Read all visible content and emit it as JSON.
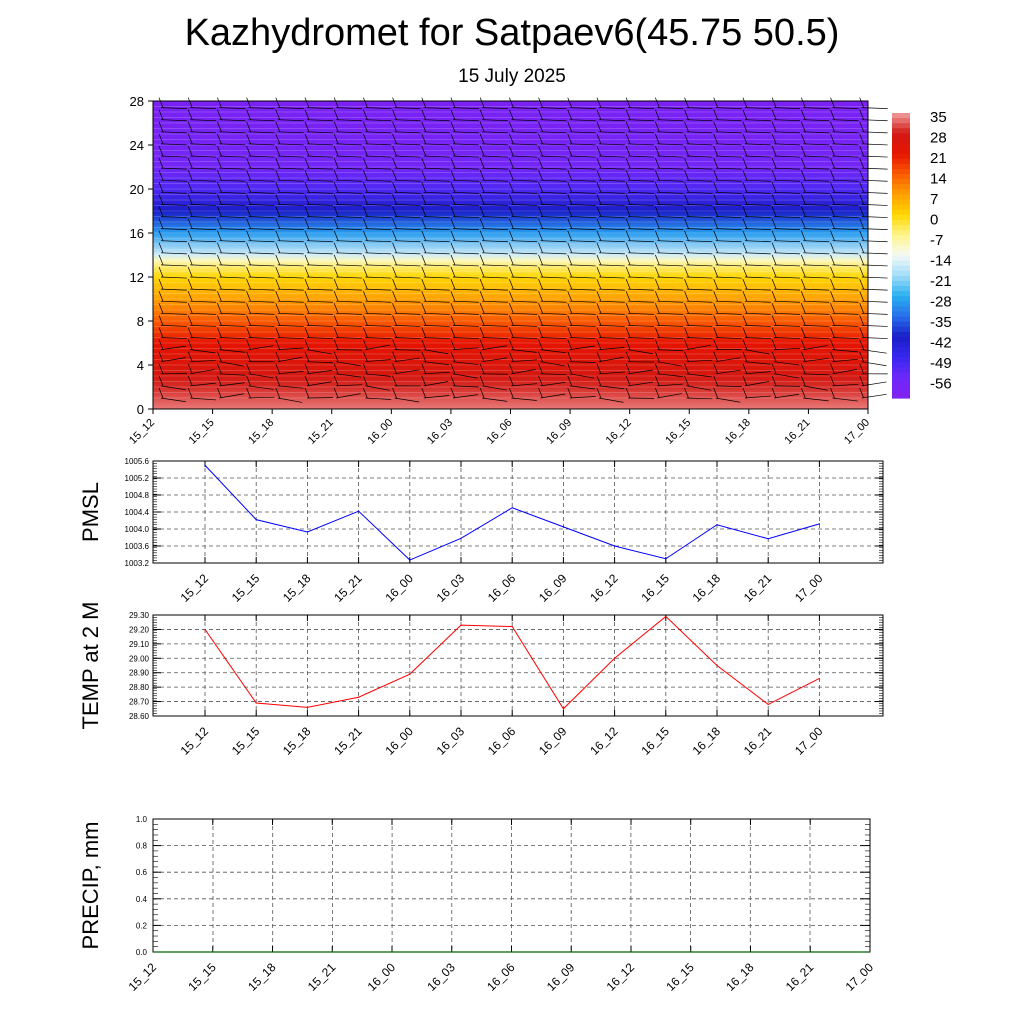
{
  "header": {
    "title": "Kazhydromet for Satpaev6(45.75 50.5)",
    "subtitle": "15 July 2025"
  },
  "chart_data": [
    {
      "id": "temperature_profile",
      "type": "heatmap",
      "description_type": "filled contour with wind barbs",
      "x_ticks": [
        "15_12",
        "15_15",
        "15_18",
        "15_21",
        "16_00",
        "16_03",
        "16_06",
        "16_09",
        "16_12",
        "16_15",
        "16_18",
        "16_21",
        "17_00"
      ],
      "y_ticks": [
        0,
        4,
        8,
        12,
        16,
        20,
        24,
        28
      ],
      "ylim": [
        0,
        28
      ],
      "colorbar_labels": [
        "35",
        "28",
        "21",
        "14",
        "7",
        "0",
        "-7",
        "-14",
        "-21",
        "-28",
        "-35",
        "-42",
        "-49",
        "-56"
      ],
      "colorbar_range": [
        -63,
        35
      ],
      "height_km": [
        0,
        1,
        2,
        3,
        4,
        5,
        6,
        8,
        10,
        12,
        13.5,
        14,
        16,
        18,
        20,
        22,
        24,
        26,
        28
      ],
      "temperature_c": [
        33,
        31,
        29,
        27,
        25,
        23,
        21,
        14,
        7,
        0,
        -10,
        -17,
        -30,
        -42,
        -52,
        -58,
        -59,
        -60,
        -61
      ],
      "legend": "none"
    },
    {
      "id": "pmsl",
      "type": "line",
      "ylabel": "PMSL",
      "y_ticks": [
        "1003.2",
        "1003.6",
        "1004.0",
        "1004.4",
        "1004.8",
        "1005.2",
        "1005.6"
      ],
      "ylim": [
        1003.2,
        1005.6
      ],
      "categories": [
        "15_12",
        "15_15",
        "15_18",
        "15_21",
        "16_00",
        "16_03",
        "16_06",
        "16_09",
        "16_12",
        "16_15",
        "16_18",
        "16_21",
        "17_00"
      ],
      "values": [
        1005.5,
        1004.22,
        1003.93,
        1004.42,
        1003.27,
        1003.78,
        1004.5,
        1004.05,
        1003.6,
        1003.3,
        1004.1,
        1003.77,
        1004.12
      ],
      "color": "#0000ff",
      "grid": true
    },
    {
      "id": "temp2m",
      "type": "line",
      "ylabel": "TEMP at 2 M",
      "y_ticks": [
        "28.60",
        "28.70",
        "28.80",
        "28.90",
        "29.00",
        "29.10",
        "29.20",
        "29.30"
      ],
      "ylim": [
        28.6,
        29.3
      ],
      "categories": [
        "15_12",
        "15_15",
        "15_18",
        "15_21",
        "16_00",
        "16_03",
        "16_06",
        "16_09",
        "16_12",
        "16_15",
        "16_18",
        "16_21",
        "17_00"
      ],
      "values": [
        29.2,
        28.69,
        28.66,
        28.73,
        28.89,
        29.23,
        29.22,
        28.65,
        29.0,
        29.29,
        28.95,
        28.68,
        28.86
      ],
      "color": "#ff0000",
      "grid": true
    },
    {
      "id": "precip",
      "type": "line",
      "ylabel": "PRECIP, mm",
      "y_ticks": [
        "0.0",
        "0.2",
        "0.4",
        "0.6",
        "0.8",
        "1.0"
      ],
      "ylim": [
        0,
        1.0
      ],
      "categories": [
        "15_12",
        "15_15",
        "15_18",
        "15_21",
        "16_00",
        "16_03",
        "16_06",
        "16_09",
        "16_12",
        "16_15",
        "16_18",
        "16_21",
        "17_00"
      ],
      "values": [
        0,
        0,
        0,
        0,
        0,
        0,
        0,
        0,
        0,
        0,
        0,
        0,
        0
      ],
      "color": "#006400",
      "grid": true
    }
  ]
}
